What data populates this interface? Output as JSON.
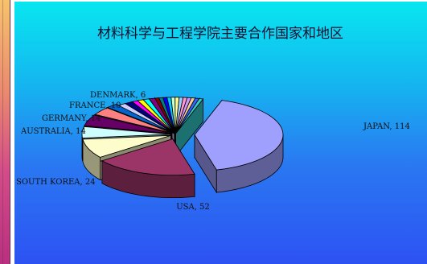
{
  "chart_data": {
    "type": "pie",
    "style": "3d-exploded",
    "title": "材料科学与工程学院主要合作国家和地区",
    "slices": [
      {
        "label": "JAPAN, 114",
        "value": 114,
        "color": "#9f9ffd"
      },
      {
        "label": "USA, 52",
        "value": 52,
        "color": "#9b3467"
      },
      {
        "label": "SOUTH KOREA, 24",
        "value": 24,
        "color": "#fdfccb"
      },
      {
        "label": "AUSTRALIA, 14",
        "value": 14,
        "color": "#cdfdfd"
      },
      {
        "label": "GERMANY, 14",
        "value": 14,
        "color": "#660066"
      },
      {
        "label": "FRANCE, 10",
        "value": 10,
        "color": "#fd8080"
      },
      {
        "label": "DENMARK, 6",
        "value": 6,
        "color": "#0066cc"
      },
      {
        "label": "",
        "value": 4,
        "color": "#ccccff"
      },
      {
        "label": "",
        "value": 4,
        "color": "#000080"
      },
      {
        "label": "",
        "value": 3,
        "color": "#ff00ff"
      },
      {
        "label": "",
        "value": 3,
        "color": "#ffff00"
      },
      {
        "label": "",
        "value": 3,
        "color": "#00ffff"
      },
      {
        "label": "",
        "value": 3,
        "color": "#800080"
      },
      {
        "label": "",
        "value": 2,
        "color": "#800000"
      },
      {
        "label": "",
        "value": 2,
        "color": "#008080"
      },
      {
        "label": "",
        "value": 2,
        "color": "#0000ff"
      },
      {
        "label": "",
        "value": 2,
        "color": "#00ccff"
      },
      {
        "label": "",
        "value": 2,
        "color": "#ccffcc"
      },
      {
        "label": "",
        "value": 2,
        "color": "#ffff99"
      },
      {
        "label": "",
        "value": 2,
        "color": "#99ccff"
      },
      {
        "label": "",
        "value": 2,
        "color": "#ff99cc"
      },
      {
        "label": "",
        "value": 2,
        "color": "#cc99ff"
      },
      {
        "label": "",
        "value": 2,
        "color": "#ffcc99"
      },
      {
        "label": "",
        "value": 2,
        "color": "#3366ff"
      },
      {
        "label": "",
        "value": 2,
        "color": "#33cccc"
      }
    ]
  }
}
